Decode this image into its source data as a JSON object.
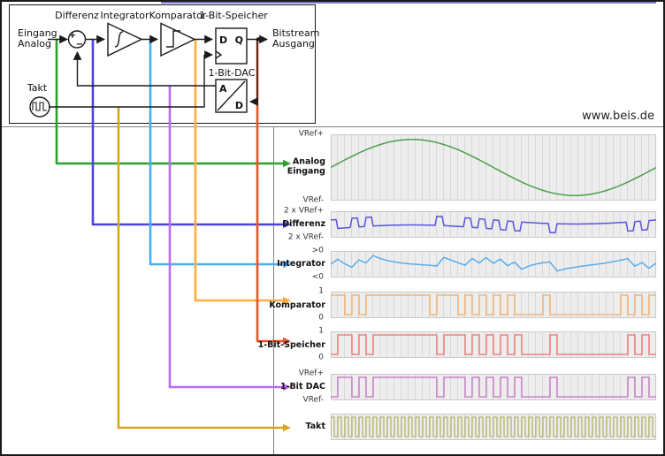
{
  "watermark": "www.beis.de",
  "diagram": {
    "blocks": {
      "differenz": "Differenz",
      "integrator": "Integrator",
      "komparator": "Komparator",
      "speicher": "1-Bit-Speicher",
      "dac": "1-Bit-DAC",
      "takt": "Takt"
    },
    "input_label": [
      "Eingang",
      "Analog"
    ],
    "output_label": [
      "Bitstream",
      "Ausgang"
    ],
    "ff_pins": {
      "d": "D",
      "q": "Q"
    },
    "dac_pins": {
      "a": "A",
      "d": "D"
    },
    "sum": {
      "plus": "+",
      "minus": "−"
    }
  },
  "colors": {
    "wire_analog": "#2da02d",
    "wire_differenz": "#4a44db",
    "wire_integrator": "#45b0f5",
    "wire_komparator": "#ffad3d",
    "wire_speicher": "#f4502b",
    "wire_dac": "#bb6cf2",
    "wire_takt": "#d9a521",
    "trace_analog": "#4a9e4a",
    "trace_differenz": "#5a55e0",
    "trace_integrator": "#55acec",
    "trace_komparator": "#f3ac62",
    "trace_speicher": "#f26b6b",
    "trace_dac": "#c470c4",
    "trace_takt": "#a9a955"
  },
  "waveforms": {
    "rows": [
      {
        "id": "analog",
        "label_lines": [
          "Analog",
          "Eingang"
        ],
        "top_tick": "VRef+",
        "bottom_tick": "VRef-"
      },
      {
        "id": "differenz",
        "label_lines": [
          "Differenz"
        ],
        "top_tick": "2 x VRef+",
        "bottom_tick": "2 x VRef-"
      },
      {
        "id": "integrator",
        "label_lines": [
          "Integrator"
        ],
        "top_tick": ">0",
        "bottom_tick": "<0"
      },
      {
        "id": "komparator",
        "label_lines": [
          "Komparator"
        ],
        "top_tick": "1",
        "bottom_tick": "0"
      },
      {
        "id": "speicher",
        "label_lines": [
          "1-Bit-Speicher"
        ],
        "top_tick": "1",
        "bottom_tick": "0"
      },
      {
        "id": "dac",
        "label_lines": [
          "1-Bit DAC"
        ],
        "top_tick": "VRef+",
        "bottom_tick": "VRef-"
      },
      {
        "id": "takt",
        "label_lines": [
          "Takt"
        ],
        "top_tick": "",
        "bottom_tick": ""
      }
    ]
  },
  "chart_data": {
    "type": "line",
    "x_unit": "clock cycles",
    "clocks": 46,
    "grid": "vertical line each clock",
    "input_sine": {
      "amplitude_vref": 0.9,
      "periods": 1,
      "phase": 0
    },
    "bitstream": [
      0,
      1,
      1,
      0,
      1,
      0,
      1,
      1,
      1,
      1,
      1,
      1,
      1,
      1,
      1,
      0,
      1,
      1,
      1,
      0,
      1,
      0,
      1,
      0,
      1,
      0,
      1,
      0,
      0,
      0,
      0,
      1,
      0,
      0,
      0,
      0,
      0,
      0,
      0,
      0,
      0,
      0,
      1,
      0,
      1,
      0
    ],
    "series": [
      {
        "name": "Analog Eingang",
        "ylim": [
          "VRef-",
          "VRef+"
        ],
        "signal": "sine, one full period across the window"
      },
      {
        "name": "Differenz",
        "ylim": [
          "2 x VRef-",
          "2 x VRef+"
        ],
        "signal": "Analog Eingang minus 1-Bit DAC output"
      },
      {
        "name": "Integrator",
        "ylim": [
          "<0",
          ">0"
        ],
        "signal": "integral of Differenz"
      },
      {
        "name": "Komparator",
        "ylim": [
          "0",
          "1"
        ],
        "signal": "bitstream advanced by one clock"
      },
      {
        "name": "1-Bit-Speicher",
        "ylim": [
          "0",
          "1"
        ],
        "signal": "bitstream"
      },
      {
        "name": "1-Bit DAC",
        "ylim": [
          "VRef-",
          "VRef+"
        ],
        "signal": "bitstream mapped to VRef+/VRef-"
      },
      {
        "name": "Takt",
        "ylim": [
          "0",
          "1"
        ],
        "signal": "clock, one cycle per sample"
      }
    ]
  }
}
